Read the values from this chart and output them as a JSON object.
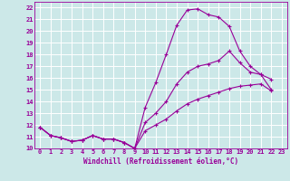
{
  "xlabel": "Windchill (Refroidissement éolien,°C)",
  "ylabel": "",
  "bg_color": "#cce8e8",
  "grid_color": "#ffffff",
  "line_color": "#990099",
  "xlim": [
    -0.5,
    23.5
  ],
  "ylim": [
    10,
    22.5
  ],
  "xticks": [
    0,
    1,
    2,
    3,
    4,
    5,
    6,
    7,
    8,
    9,
    10,
    11,
    12,
    13,
    14,
    15,
    16,
    17,
    18,
    19,
    20,
    21,
    22,
    23
  ],
  "yticks": [
    10,
    11,
    12,
    13,
    14,
    15,
    16,
    17,
    18,
    19,
    20,
    21,
    22
  ],
  "lines": [
    {
      "x": [
        0,
        1,
        2,
        3,
        4,
        5,
        6,
        7,
        8,
        9,
        10,
        11,
        12,
        13,
        14,
        15,
        16,
        17,
        18,
        19,
        20,
        21,
        22
      ],
      "y": [
        11.8,
        11.1,
        10.9,
        10.6,
        10.7,
        11.1,
        10.8,
        10.8,
        10.5,
        10.0,
        13.5,
        15.6,
        18.0,
        20.5,
        21.8,
        21.9,
        21.4,
        21.2,
        20.4,
        18.3,
        17.0,
        16.3,
        15.0
      ]
    },
    {
      "x": [
        0,
        1,
        2,
        3,
        4,
        5,
        6,
        7,
        8,
        9,
        10,
        11,
        12,
        13,
        14,
        15,
        16,
        17,
        18,
        19,
        20,
        21,
        22
      ],
      "y": [
        11.8,
        11.1,
        10.9,
        10.6,
        10.7,
        11.1,
        10.8,
        10.8,
        10.5,
        10.0,
        11.5,
        12.0,
        12.5,
        13.2,
        13.8,
        14.2,
        14.5,
        14.8,
        15.1,
        15.3,
        15.4,
        15.5,
        14.9
      ]
    },
    {
      "x": [
        0,
        1,
        2,
        3,
        4,
        5,
        6,
        7,
        8,
        9,
        10,
        11,
        12,
        13,
        14,
        15,
        16,
        17,
        18,
        19,
        20,
        21,
        22
      ],
      "y": [
        11.8,
        11.1,
        10.9,
        10.6,
        10.7,
        11.1,
        10.8,
        10.8,
        10.5,
        10.0,
        12.2,
        13.0,
        14.0,
        15.5,
        16.5,
        17.0,
        17.2,
        17.5,
        18.3,
        17.3,
        16.5,
        16.3,
        15.9
      ]
    }
  ],
  "label_fontsize": 5.5,
  "tick_fontsize": 5.0
}
